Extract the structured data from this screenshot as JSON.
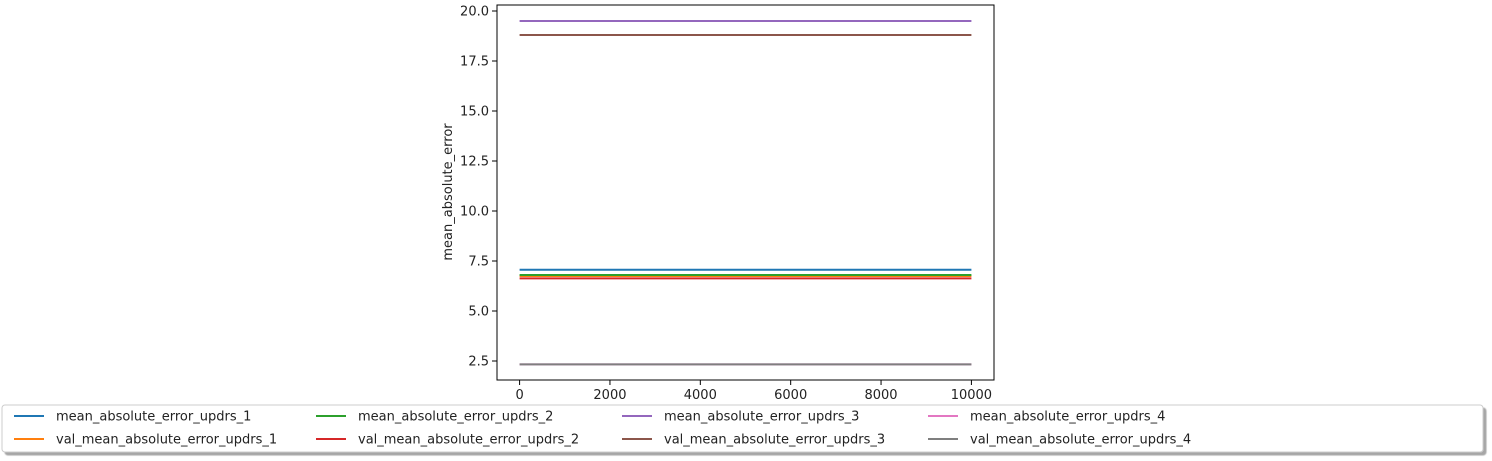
{
  "chart_data": {
    "type": "line",
    "title": "",
    "xlabel": "",
    "ylabel": "mean_absolute_error",
    "xlim": [
      -500,
      10500
    ],
    "ylim": [
      1.55,
      20.3
    ],
    "xticks": [
      0,
      2000,
      4000,
      6000,
      8000,
      10000
    ],
    "yticks": [
      2.5,
      5.0,
      7.5,
      10.0,
      12.5,
      15.0,
      17.5,
      20.0
    ],
    "ytick_labels": [
      "2.5",
      "5.0",
      "7.5",
      "10.0",
      "12.5",
      "15.0",
      "17.5",
      "20.0"
    ],
    "x": [
      0,
      10000
    ],
    "grid": false,
    "legend_placement": "below plot, 5 columns",
    "series": [
      {
        "name": "mean_absolute_error_updrs_1",
        "color": "#1f77b4",
        "values": [
          7.06,
          7.06
        ]
      },
      {
        "name": "val_mean_absolute_error_updrs_1",
        "color": "#ff7f0e",
        "values": [
          6.75,
          6.75
        ]
      },
      {
        "name": "mean_absolute_error_updrs_2",
        "color": "#2ca02c",
        "values": [
          6.8,
          6.8
        ]
      },
      {
        "name": "val_mean_absolute_error_updrs_2",
        "color": "#d62728",
        "values": [
          6.63,
          6.63
        ]
      },
      {
        "name": "mean_absolute_error_updrs_3",
        "color": "#9467bd",
        "values": [
          19.5,
          19.5
        ]
      },
      {
        "name": "val_mean_absolute_error_updrs_3",
        "color": "#8c564b",
        "values": [
          18.8,
          18.8
        ]
      },
      {
        "name": "mean_absolute_error_updrs_4",
        "color": "#e377c2",
        "values": [
          2.33,
          2.33
        ]
      },
      {
        "name": "val_mean_absolute_error_updrs_4",
        "color": "#7f7f7f",
        "values": [
          2.33,
          2.33
        ]
      }
    ]
  }
}
